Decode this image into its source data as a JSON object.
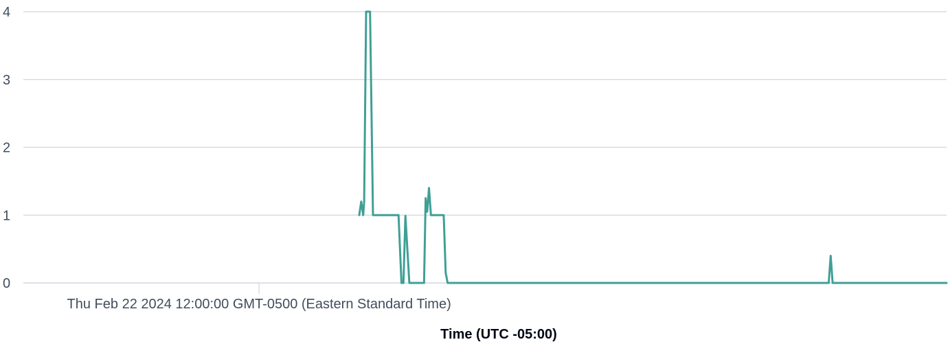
{
  "chart_data": {
    "type": "line",
    "title": "",
    "xlabel": "Time (UTC -05:00)",
    "ylabel": "",
    "x_unit": "minutes after Thu Feb 22 2024 12:00:00 GMT-0500",
    "xlim": [
      -120,
      350
    ],
    "ylim": [
      0,
      4
    ],
    "y_ticks": [
      0,
      1,
      2,
      3,
      4
    ],
    "x_ticks": [
      {
        "x": 0,
        "label": "Thu Feb 22 2024 12:00:00 GMT-0500 (Eastern Standard Time)"
      }
    ],
    "grid": true,
    "legend": "none",
    "colors": {
      "series": "#3f9f96",
      "grid": "#d1d5db",
      "text": "#414d5c"
    },
    "series": [
      {
        "points": [
          [
            51,
            1.0
          ],
          [
            52,
            1.2
          ],
          [
            53,
            1.0
          ],
          [
            53.5,
            1.2
          ],
          [
            54.5,
            4.0
          ],
          [
            56.5,
            4.0
          ],
          [
            58,
            1.0
          ],
          [
            71,
            1.0
          ],
          [
            72.5,
            0.0
          ],
          [
            73.5,
            0.0
          ],
          [
            74.5,
            0.99
          ],
          [
            76.5,
            0.0
          ],
          [
            84,
            0.0
          ],
          [
            84.8,
            1.25
          ],
          [
            85.6,
            1.05
          ],
          [
            86.5,
            1.4
          ],
          [
            87.5,
            1.0
          ],
          [
            94,
            1.0
          ],
          [
            95,
            0.15
          ],
          [
            96,
            0.0
          ],
          [
            290,
            0.0
          ],
          [
            291,
            0.4
          ],
          [
            292,
            0.0
          ],
          [
            350,
            0.0
          ]
        ]
      }
    ]
  }
}
